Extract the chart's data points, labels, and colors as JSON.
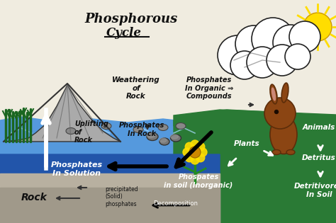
{
  "bg_color": "#f0ece0",
  "water_light_color": "#5599dd",
  "water_dark_color": "#2255aa",
  "water_wave_color": "#88bbee",
  "green_color": "#2a7a35",
  "gray_rock_color": "#aaaaaa",
  "gray_rock_dark": "#888888",
  "gray_ground_color": "#aaaaaa",
  "sun_color": "#ffdd00",
  "cloud_color": "#ffffff",
  "rock_small_color": "#888888",
  "grass_color": "#1a6620",
  "flower_yellow": "#ffdd00",
  "flower_center": "#cc8800",
  "rabbit_body": "#8B4513",
  "rabbit_dark": "#5c2d0a",
  "title_line1": "Phosphorous",
  "title_line2": "Cycle",
  "label_weathering": "Weathering\nof\nRock",
  "label_phosphates_organic": "Phosphates\nIn Organic ⇒",
  "label_phosphates_organic2": "Compounds",
  "label_uplifting": "Uplifting\nof\nRock",
  "label_phosphates_rock": "Phosphates\nIn Rock",
  "label_phosphates_solution": "Phosphates\nIn Solution",
  "label_precipitated": "precipitated\n(Solid)\nphosphates",
  "label_rock": "Rock",
  "label_phospates_soil": "Phospates\nin soil (Inorganic)",
  "label_decomposition": "Decomposition",
  "label_detritivores": "Detritivores\nIn Soil",
  "label_detritus": "Detritus",
  "label_animals": "Animals",
  "label_plants": "Plants"
}
